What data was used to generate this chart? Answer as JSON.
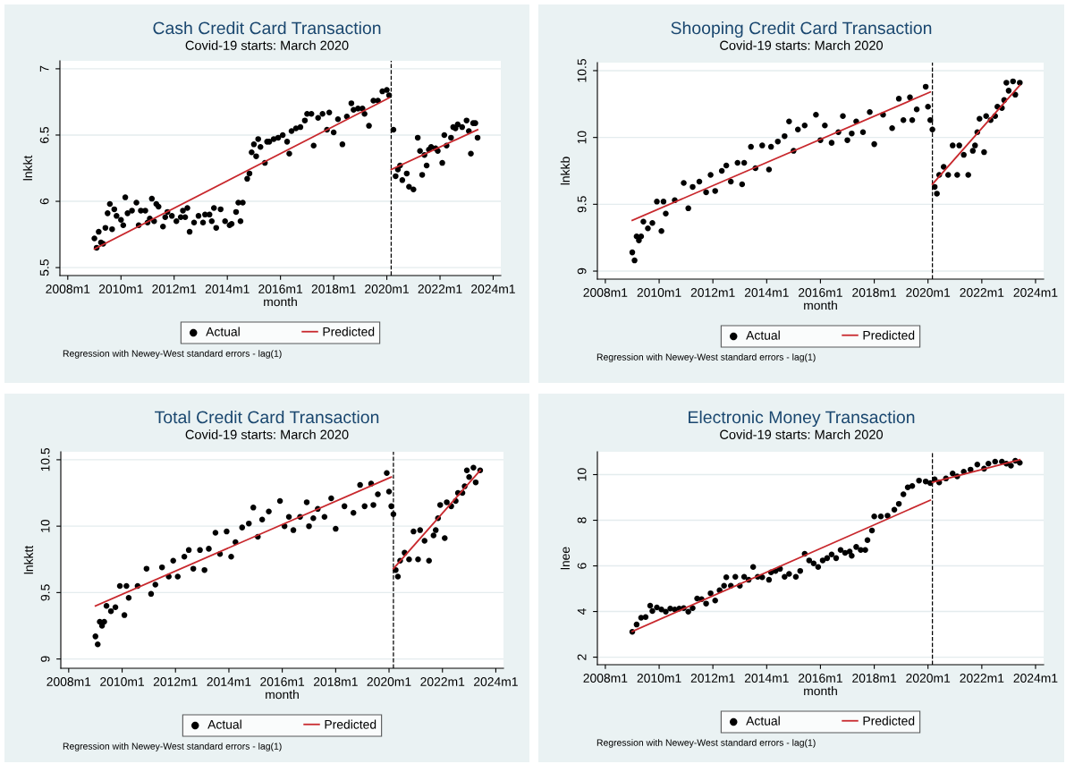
{
  "chart_data": [
    {
      "type": "scatter",
      "title": "Cash Credit Card Transaction",
      "subtitle": "Covid-19 starts: March 2020",
      "xlabel": "month",
      "ylabel": "lnkkt",
      "xlim": [
        "2007-09-15",
        "2024-04-15"
      ],
      "ylim": [
        5.44,
        7.06
      ],
      "xticks": [
        {
          "value": "2008-01",
          "label": "2008m1"
        },
        {
          "value": "2010-01",
          "label": "2010m1"
        },
        {
          "value": "2012-01",
          "label": "2012m1"
        },
        {
          "value": "2014-01",
          "label": "2014m1"
        },
        {
          "value": "2016-01",
          "label": "2016m1"
        },
        {
          "value": "2018-01",
          "label": "2018m1"
        },
        {
          "value": "2020-01",
          "label": "2020m1"
        },
        {
          "value": "2022-01",
          "label": "2022m1"
        },
        {
          "value": "2024-01",
          "label": "2024m1"
        }
      ],
      "yticks": [
        5.5,
        6,
        6.5,
        7
      ],
      "grid": "y",
      "legend": "bottom",
      "annotations": [
        "Regression with Newey-West standard errors - lag(1)"
      ],
      "ref_lines": [
        {
          "axis": "x",
          "value": "2020-03",
          "color": "#000000",
          "line_style": "dashed"
        }
      ],
      "series": [
        {
          "name": "Actual",
          "type": "scatter",
          "marker": "circle",
          "color": "#000000",
          "x": [
            "2009-01",
            "2009-02",
            "2009-03",
            "2009-04",
            "2009-05",
            "2009-06",
            "2009-07",
            "2009-08",
            "2009-09",
            "2009-10",
            "2009-11",
            "2010-01",
            "2010-02",
            "2010-03",
            "2010-04",
            "2010-06",
            "2010-08",
            "2010-09",
            "2010-10",
            "2010-12",
            "2011-01",
            "2011-02",
            "2011-03",
            "2011-04",
            "2011-05",
            "2011-06",
            "2011-08",
            "2011-09",
            "2011-10",
            "2011-12",
            "2012-02",
            "2012-04",
            "2012-05",
            "2012-06",
            "2012-07",
            "2012-08",
            "2012-10",
            "2012-12",
            "2013-02",
            "2013-03",
            "2013-05",
            "2013-06",
            "2013-07",
            "2013-08",
            "2013-10",
            "2013-12",
            "2014-02",
            "2014-03",
            "2014-05",
            "2014-06",
            "2014-07",
            "2014-08",
            "2014-10",
            "2014-11",
            "2014-12",
            "2015-01",
            "2015-02",
            "2015-03",
            "2015-04",
            "2015-06",
            "2015-07",
            "2015-08",
            "2015-10",
            "2015-12",
            "2016-02",
            "2016-04",
            "2016-05",
            "2016-06",
            "2016-08",
            "2016-10",
            "2016-12",
            "2017-01",
            "2017-03",
            "2017-04",
            "2017-06",
            "2017-08",
            "2017-10",
            "2017-11",
            "2018-01",
            "2018-03",
            "2018-05",
            "2018-07",
            "2018-09",
            "2018-10",
            "2018-12",
            "2019-02",
            "2019-03",
            "2019-05",
            "2019-07",
            "2019-09",
            "2019-11",
            "2020-01",
            "2020-02",
            "2020-04",
            "2020-05",
            "2020-06",
            "2020-07",
            "2020-08",
            "2020-10",
            "2020-11",
            "2021-01",
            "2021-03",
            "2021-04",
            "2021-05",
            "2021-06",
            "2021-07",
            "2021-08",
            "2021-09",
            "2021-11",
            "2021-12",
            "2022-02",
            "2022-03",
            "2022-04",
            "2022-06",
            "2022-07",
            "2022-08",
            "2022-09",
            "2022-11",
            "2023-01",
            "2023-02",
            "2023-03",
            "2023-04",
            "2023-05",
            "2023-06"
          ],
          "values": [
            5.72,
            5.65,
            5.77,
            5.69,
            5.68,
            5.8,
            5.91,
            5.98,
            5.79,
            5.94,
            5.89,
            5.86,
            5.82,
            6.03,
            5.91,
            5.93,
            5.99,
            5.82,
            5.93,
            5.93,
            5.84,
            5.87,
            6.02,
            5.85,
            5.98,
            5.96,
            5.81,
            5.88,
            5.92,
            5.89,
            5.85,
            5.88,
            5.93,
            5.88,
            5.95,
            5.77,
            5.84,
            5.89,
            5.84,
            5.9,
            5.9,
            5.85,
            5.95,
            5.8,
            5.94,
            5.85,
            5.82,
            5.83,
            5.92,
            5.99,
            5.85,
            5.99,
            6.17,
            6.21,
            6.37,
            6.43,
            6.34,
            6.47,
            6.41,
            6.29,
            6.45,
            6.45,
            6.47,
            6.48,
            6.5,
            6.45,
            6.36,
            6.53,
            6.55,
            6.56,
            6.61,
            6.66,
            6.66,
            6.42,
            6.63,
            6.66,
            6.54,
            6.67,
            6.52,
            6.62,
            6.43,
            6.64,
            6.74,
            6.69,
            6.7,
            6.7,
            6.66,
            6.57,
            6.76,
            6.76,
            6.83,
            6.84,
            6.8,
            6.54,
            6.19,
            6.24,
            6.27,
            6.16,
            6.21,
            6.11,
            6.09,
            6.48,
            6.38,
            6.2,
            6.35,
            6.27,
            6.39,
            6.41,
            6.4,
            6.38,
            6.29,
            6.5,
            6.42,
            6.48,
            6.56,
            6.55,
            6.58,
            6.56,
            6.61,
            6.53,
            6.36,
            6.59,
            6.59,
            6.48
          ]
        },
        {
          "name": "Predicted",
          "type": "line",
          "marker": "none",
          "color": "#c8282d",
          "x": [
            "2009-01",
            "2020-02"
          ],
          "values": [
            5.64,
            6.78
          ]
        },
        {
          "type": "line",
          "marker": "none",
          "color": "#c8282d",
          "x": [
            "2020-03",
            "2023-06"
          ],
          "values": [
            6.24,
            6.54
          ]
        }
      ]
    },
    {
      "type": "scatter",
      "title": "Shooping Credit Card Transaction",
      "subtitle": "Covid-19 starts: March 2020",
      "xlabel": "month",
      "ylabel": "lnkkb",
      "xlim": [
        "2007-09-15",
        "2024-04-20"
      ],
      "ylim": [
        8.94,
        10.56
      ],
      "xticks": [
        {
          "value": "2008-01",
          "label": "2008m1"
        },
        {
          "value": "2010-01",
          "label": "2010m1"
        },
        {
          "value": "2012-01",
          "label": "2012m1"
        },
        {
          "value": "2014-01",
          "label": "2014m1"
        },
        {
          "value": "2016-01",
          "label": "2016m1"
        },
        {
          "value": "2018-01",
          "label": "2018m1"
        },
        {
          "value": "2020-01",
          "label": "2020m1"
        },
        {
          "value": "2022-01",
          "label": "2022m1"
        },
        {
          "value": "2024-01",
          "label": "2024m1"
        }
      ],
      "yticks": [
        9,
        9.5,
        10,
        10.5
      ],
      "grid": "y",
      "legend": "bottom",
      "annotations": [
        "Regression with Newey-West standard errors - lag(1)"
      ],
      "ref_lines": [
        {
          "axis": "x",
          "value": "2020-03",
          "color": "#000000",
          "line_style": "dashed"
        }
      ],
      "series": [
        {
          "name": "Actual",
          "type": "scatter",
          "marker": "circle",
          "color": "#000000",
          "x": [
            "2009-01",
            "2009-02",
            "2009-03",
            "2009-04",
            "2009-05",
            "2009-06",
            "2009-08",
            "2009-10",
            "2009-12",
            "2010-02",
            "2010-03",
            "2010-04",
            "2010-08",
            "2010-12",
            "2011-02",
            "2011-04",
            "2011-07",
            "2011-10",
            "2011-12",
            "2012-02",
            "2012-05",
            "2012-07",
            "2012-09",
            "2012-12",
            "2013-02",
            "2013-03",
            "2013-06",
            "2013-08",
            "2013-11",
            "2014-02",
            "2014-03",
            "2014-06",
            "2014-09",
            "2014-11",
            "2015-01",
            "2015-03",
            "2015-06",
            "2015-11",
            "2016-01",
            "2016-03",
            "2016-06",
            "2016-09",
            "2016-11",
            "2017-01",
            "2017-03",
            "2017-05",
            "2017-08",
            "2017-11",
            "2018-01",
            "2018-05",
            "2018-09",
            "2018-12",
            "2019-02",
            "2019-05",
            "2019-06",
            "2019-08",
            "2019-12",
            "2020-01",
            "2020-02",
            "2020-03",
            "2020-04",
            "2020-05",
            "2020-06",
            "2020-08",
            "2020-10",
            "2020-12",
            "2021-02",
            "2021-03",
            "2021-05",
            "2021-07",
            "2021-09",
            "2021-10",
            "2021-11",
            "2021-12",
            "2022-02",
            "2022-03",
            "2022-05",
            "2022-07",
            "2022-08",
            "2022-10",
            "2022-11",
            "2022-12",
            "2023-01",
            "2023-03",
            "2023-04",
            "2023-06"
          ],
          "values": [
            9.14,
            9.08,
            9.26,
            9.23,
            9.26,
            9.37,
            9.32,
            9.36,
            9.52,
            9.3,
            9.52,
            9.43,
            9.53,
            9.66,
            9.47,
            9.63,
            9.67,
            9.59,
            9.72,
            9.6,
            9.75,
            9.79,
            9.67,
            9.81,
            9.65,
            9.81,
            9.93,
            9.77,
            9.94,
            9.76,
            9.93,
            9.97,
            10.01,
            10.12,
            9.9,
            10.06,
            10.09,
            10.17,
            9.98,
            10.09,
            9.96,
            10.04,
            10.16,
            9.98,
            10.03,
            10.12,
            10.04,
            10.19,
            9.95,
            10.17,
            10.07,
            10.29,
            10.13,
            10.3,
            10.13,
            10.21,
            10.38,
            10.23,
            10.13,
            10.06,
            9.63,
            9.58,
            9.72,
            9.78,
            9.72,
            9.94,
            9.72,
            9.94,
            9.87,
            9.72,
            9.9,
            9.94,
            10.04,
            10.14,
            9.89,
            10.16,
            10.13,
            10.16,
            10.23,
            10.22,
            10.28,
            10.41,
            10.35,
            10.42,
            10.32,
            10.41
          ]
        },
        {
          "name": "Predicted",
          "type": "line",
          "marker": "none",
          "color": "#c8282d",
          "x": [
            "2009-01",
            "2020-02"
          ],
          "values": [
            9.38,
            10.34
          ]
        },
        {
          "type": "line",
          "marker": "none",
          "color": "#c8282d",
          "x": [
            "2020-03",
            "2023-06"
          ],
          "values": [
            9.65,
            10.39
          ]
        }
      ]
    },
    {
      "type": "scatter",
      "title": "Total Credit Card Transaction",
      "subtitle": "Covid-19 starts: March 2020",
      "xlabel": "month",
      "ylabel": "lnkktt",
      "xlim": [
        "2007-09-15",
        "2024-04-15"
      ],
      "ylim": [
        8.93,
        10.56
      ],
      "xticks": [
        {
          "value": "2008-01",
          "label": "2008m1"
        },
        {
          "value": "2010-01",
          "label": "2010m1"
        },
        {
          "value": "2012-01",
          "label": "2012m1"
        },
        {
          "value": "2014-01",
          "label": "2014m1"
        },
        {
          "value": "2016-01",
          "label": "2016m1"
        },
        {
          "value": "2018-01",
          "label": "2018m1"
        },
        {
          "value": "2020-01",
          "label": "2020m1"
        },
        {
          "value": "2022-01",
          "label": "2022m1"
        },
        {
          "value": "2024-01",
          "label": "2024m1"
        }
      ],
      "yticks": [
        9,
        9.5,
        10,
        10.5
      ],
      "grid": "y",
      "legend": "bottom",
      "annotations": [
        "Regression with Newey-West standard errors - lag(1)"
      ],
      "ref_lines": [
        {
          "axis": "x",
          "value": "2020-03",
          "color": "#000000",
          "line_style": "dashed"
        }
      ],
      "series": [
        {
          "name": "Actual",
          "type": "scatter",
          "marker": "circle",
          "color": "#000000",
          "x": [
            "2009-01",
            "2009-02",
            "2009-03",
            "2009-04",
            "2009-05",
            "2009-06",
            "2009-08",
            "2009-10",
            "2009-12",
            "2010-02",
            "2010-03",
            "2010-04",
            "2010-08",
            "2010-12",
            "2011-02",
            "2011-04",
            "2011-07",
            "2011-10",
            "2011-12",
            "2012-02",
            "2012-05",
            "2012-07",
            "2012-09",
            "2012-12",
            "2013-02",
            "2013-04",
            "2013-07",
            "2013-09",
            "2013-12",
            "2014-02",
            "2014-04",
            "2014-07",
            "2014-10",
            "2014-12",
            "2015-02",
            "2015-04",
            "2015-07",
            "2015-12",
            "2016-02",
            "2016-04",
            "2016-06",
            "2016-09",
            "2016-12",
            "2017-01",
            "2017-03",
            "2017-05",
            "2017-08",
            "2017-11",
            "2018-01",
            "2018-05",
            "2018-09",
            "2018-12",
            "2019-02",
            "2019-05",
            "2019-06",
            "2019-08",
            "2019-12",
            "2020-01",
            "2020-02",
            "2020-03",
            "2020-04",
            "2020-05",
            "2020-06",
            "2020-08",
            "2020-10",
            "2020-12",
            "2021-02",
            "2021-03",
            "2021-05",
            "2021-07",
            "2021-09",
            "2021-10",
            "2021-11",
            "2021-12",
            "2022-02",
            "2022-03",
            "2022-05",
            "2022-07",
            "2022-08",
            "2022-10",
            "2022-11",
            "2022-12",
            "2023-01",
            "2023-03",
            "2023-04",
            "2023-06"
          ],
          "values": [
            9.17,
            9.11,
            9.28,
            9.25,
            9.28,
            9.4,
            9.36,
            9.39,
            9.55,
            9.33,
            9.55,
            9.46,
            9.55,
            9.68,
            9.49,
            9.56,
            9.69,
            9.62,
            9.74,
            9.62,
            9.77,
            9.82,
            9.68,
            9.82,
            9.67,
            9.83,
            9.95,
            9.79,
            9.96,
            9.77,
            9.88,
            9.99,
            10.02,
            10.14,
            9.92,
            10.05,
            10.11,
            10.19,
            10.0,
            10.07,
            9.97,
            10.07,
            10.18,
            10.0,
            10.06,
            10.13,
            10.07,
            10.21,
            9.98,
            10.15,
            10.1,
            10.31,
            10.15,
            10.32,
            10.16,
            10.24,
            10.4,
            10.26,
            10.15,
            10.09,
            9.67,
            9.62,
            9.74,
            9.8,
            9.75,
            9.96,
            9.75,
            9.97,
            9.89,
            9.74,
            9.93,
            9.97,
            10.06,
            10.16,
            9.91,
            10.18,
            10.15,
            10.19,
            10.25,
            10.25,
            10.3,
            10.42,
            10.37,
            10.44,
            10.33,
            10.42
          ]
        },
        {
          "name": "Predicted",
          "type": "line",
          "marker": "none",
          "color": "#c8282d",
          "x": [
            "2009-01",
            "2020-02"
          ],
          "values": [
            9.4,
            10.37
          ]
        },
        {
          "type": "line",
          "marker": "none",
          "color": "#c8282d",
          "x": [
            "2020-03",
            "2023-06"
          ],
          "values": [
            9.68,
            10.42
          ]
        }
      ]
    },
    {
      "type": "scatter",
      "title": "Electronic Money Transaction",
      "subtitle": "Covid-19 starts: March 2020",
      "xlabel": "month",
      "ylabel": "lnee",
      "xlim": [
        "2007-09-15",
        "2024-04-20"
      ],
      "ylim": [
        1.67,
        11.0
      ],
      "xticks": [
        {
          "value": "2008-01",
          "label": "2008m1"
        },
        {
          "value": "2010-01",
          "label": "2010m1"
        },
        {
          "value": "2012-01",
          "label": "2012m1"
        },
        {
          "value": "2014-01",
          "label": "2014m1"
        },
        {
          "value": "2016-01",
          "label": "2016m1"
        },
        {
          "value": "2018-01",
          "label": "2018m1"
        },
        {
          "value": "2020-01",
          "label": "2020m1"
        },
        {
          "value": "2022-01",
          "label": "2022m1"
        },
        {
          "value": "2024-01",
          "label": "2024m1"
        }
      ],
      "yticks": [
        2,
        4,
        6,
        8,
        10
      ],
      "grid": "y",
      "legend": "bottom",
      "annotations": [
        "Regression with Newey-West standard errors - lag(1)"
      ],
      "ref_lines": [
        {
          "axis": "x",
          "value": "2020-03",
          "color": "#000000",
          "line_style": "dashed"
        }
      ],
      "series": [
        {
          "name": "Actual",
          "type": "scatter",
          "marker": "circle",
          "color": "#000000",
          "x": [
            "2009-01",
            "2009-03",
            "2009-05",
            "2009-07",
            "2009-09",
            "2009-10",
            "2009-12",
            "2010-02",
            "2010-04",
            "2010-06",
            "2010-08",
            "2010-10",
            "2010-12",
            "2011-02",
            "2011-04",
            "2011-06",
            "2011-08",
            "2011-10",
            "2011-12",
            "2012-02",
            "2012-04",
            "2012-06",
            "2012-07",
            "2012-09",
            "2012-11",
            "2013-01",
            "2013-03",
            "2013-05",
            "2013-07",
            "2013-09",
            "2013-11",
            "2014-02",
            "2014-03",
            "2014-05",
            "2014-07",
            "2014-09",
            "2014-11",
            "2015-02",
            "2015-04",
            "2015-06",
            "2015-08",
            "2015-10",
            "2015-12",
            "2016-02",
            "2016-04",
            "2016-06",
            "2016-08",
            "2016-10",
            "2016-12",
            "2017-02",
            "2017-03",
            "2017-05",
            "2017-07",
            "2017-09",
            "2017-10",
            "2017-12",
            "2018-01",
            "2018-04",
            "2018-07",
            "2018-10",
            "2018-12",
            "2019-02",
            "2019-04",
            "2019-06",
            "2019-09",
            "2019-12",
            "2020-02",
            "2020-04",
            "2020-06",
            "2020-09",
            "2020-12",
            "2021-02",
            "2021-05",
            "2021-08",
            "2021-11",
            "2022-02",
            "2022-04",
            "2022-07",
            "2022-10",
            "2022-12",
            "2023-02",
            "2023-04",
            "2023-06"
          ],
          "values": [
            3.11,
            3.43,
            3.73,
            3.76,
            4.26,
            4.02,
            4.18,
            4.09,
            3.99,
            4.13,
            4.09,
            4.13,
            4.15,
            3.99,
            4.15,
            4.57,
            4.54,
            4.35,
            4.8,
            4.48,
            4.93,
            5.13,
            5.5,
            5.13,
            5.52,
            5.13,
            5.52,
            5.39,
            5.95,
            5.52,
            5.5,
            5.39,
            5.72,
            5.78,
            5.87,
            5.52,
            5.65,
            5.52,
            5.78,
            6.53,
            6.24,
            6.11,
            5.95,
            6.24,
            6.34,
            6.5,
            6.34,
            6.7,
            6.57,
            6.63,
            6.44,
            6.83,
            6.7,
            6.7,
            7.13,
            7.55,
            8.17,
            8.17,
            8.2,
            8.46,
            8.72,
            9.14,
            9.44,
            9.5,
            9.74,
            9.7,
            9.63,
            9.79,
            9.66,
            9.83,
            10.05,
            9.92,
            10.13,
            10.22,
            10.44,
            10.26,
            10.48,
            10.57,
            10.57,
            10.48,
            10.39,
            10.61,
            10.52
          ]
        },
        {
          "name": "Predicted",
          "type": "line",
          "marker": "none",
          "color": "#c8282d",
          "x": [
            "2009-01",
            "2020-02"
          ],
          "values": [
            3.13,
            8.88
          ]
        },
        {
          "type": "line",
          "marker": "none",
          "color": "#c8282d",
          "x": [
            "2020-03",
            "2023-06"
          ],
          "values": [
            9.66,
            10.65
          ]
        }
      ]
    }
  ]
}
